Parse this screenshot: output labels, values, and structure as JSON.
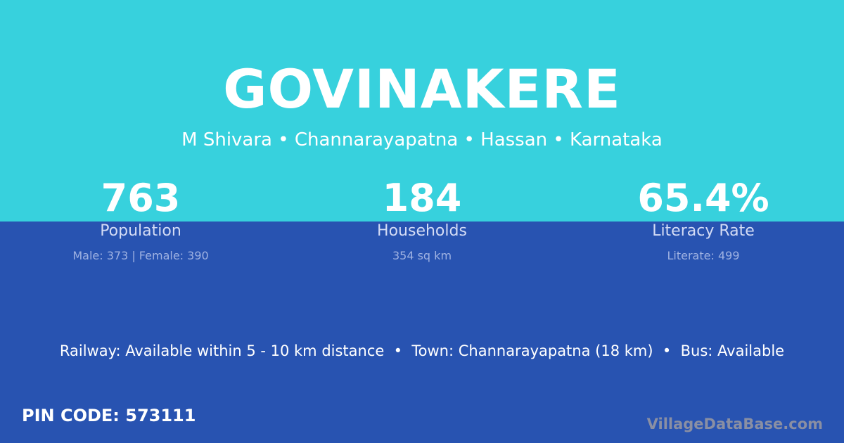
{
  "village": "GOVINAKERE",
  "location": "M Shivara • Channarayapatna • Hassan • Karnataka",
  "stats": [
    {
      "value": "763",
      "label": "Population",
      "detail": "Male: 373 | Female: 390"
    },
    {
      "value": "184",
      "label": "Households",
      "detail": "354 sq km"
    },
    {
      "value": "65.4%",
      "label": "Literacy Rate",
      "detail": "Literate: 499"
    }
  ],
  "info": "Railway: Available within 5 - 10 km distance  •  Town: Channarayapatna (18 km)  •  Bus: Available",
  "pin": "PIN CODE: 573111",
  "brand": "VillageDataBase.com",
  "colors": {
    "top": "#37d1dd",
    "bottom": "#2853b1"
  }
}
